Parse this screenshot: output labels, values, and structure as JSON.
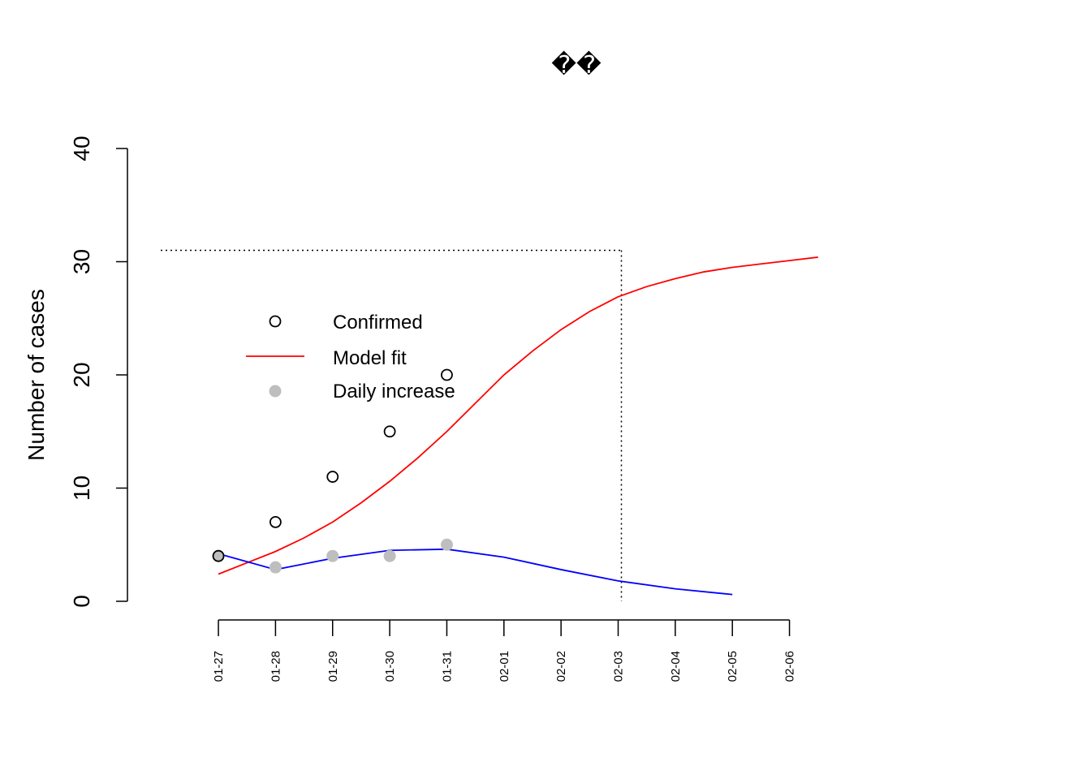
{
  "chart_data": {
    "type": "line",
    "title": "��",
    "xlabel": "",
    "ylabel": "Number of cases",
    "ylim": [
      0,
      40
    ],
    "y_ticks": [
      "0",
      "10",
      "20",
      "30",
      "40"
    ],
    "x_tick_labels": [
      "01-27",
      "01-28",
      "01-29",
      "01-30",
      "01-31",
      "02-01",
      "02-02",
      "02-03",
      "02-04",
      "02-05",
      "02-06"
    ],
    "x_range": [
      "01-26.6",
      "02-05.5"
    ],
    "series": [
      {
        "name": "Confirmed",
        "kind": "points-open",
        "color": "#000000",
        "x": [
          "01-27",
          "01-28",
          "01-29",
          "01-30",
          "01-31"
        ],
        "y": [
          4,
          7,
          11,
          15,
          20
        ]
      },
      {
        "name": "Model fit",
        "kind": "line",
        "color": "#ff0000",
        "x": [
          -1.0,
          -0.5,
          0.0,
          0.5,
          1.0,
          1.5,
          2.0,
          2.5,
          3.0,
          3.5,
          4.0,
          4.5,
          5.0,
          5.5,
          6.0,
          6.5,
          7.0,
          7.5,
          8.0,
          8.5,
          9.0,
          9.5
        ],
        "x_origin": "01-28",
        "y": [
          2.4,
          3.4,
          4.4,
          5.6,
          7.0,
          8.7,
          10.6,
          12.7,
          15.0,
          17.5,
          20.0,
          22.1,
          24.0,
          25.6,
          26.9,
          27.8,
          28.5,
          29.1,
          29.5,
          29.8,
          30.1,
          30.4
        ]
      },
      {
        "name": "Daily increase",
        "kind": "points-filled",
        "color": "#bebebe",
        "x": [
          "01-27",
          "01-28",
          "01-29",
          "01-30",
          "01-31"
        ],
        "y": [
          4,
          3,
          4,
          4,
          5
        ]
      },
      {
        "name": "",
        "kind": "line",
        "color": "#0000ff",
        "x": [
          "01-27",
          "01-28",
          "01-29",
          "01-30",
          "01-31",
          "02-01",
          "02-02",
          "02-03",
          "02-04",
          "02-05"
        ],
        "y": [
          4.2,
          2.8,
          3.8,
          4.5,
          4.6,
          3.9,
          2.8,
          1.8,
          1.1,
          0.6
        ]
      }
    ],
    "reference_lines": {
      "horizontal_y": 31,
      "vertical_x": "02-03",
      "style": "dotted"
    },
    "legend": {
      "placement": "upper-left inside plot",
      "entries": [
        "Confirmed",
        "Model fit",
        "Daily increase"
      ]
    },
    "grid": false
  }
}
